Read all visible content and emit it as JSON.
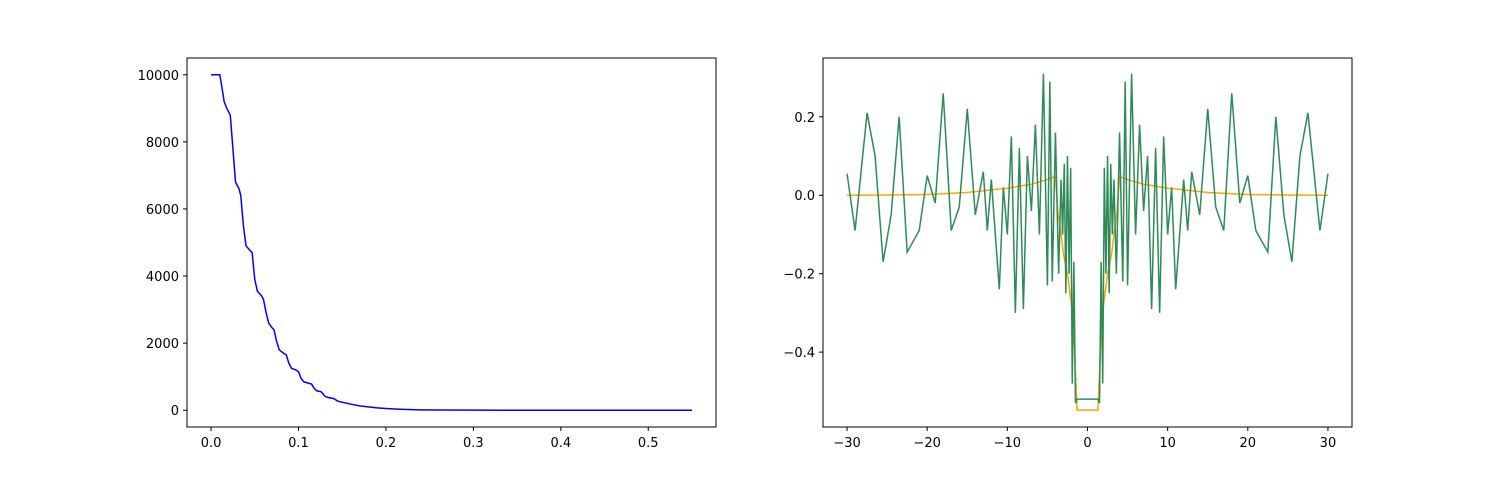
{
  "chart_data": [
    {
      "type": "line",
      "color": "#0000ff",
      "x": [
        0,
        0.01,
        0.012,
        0.015,
        0.018,
        0.022,
        0.025,
        0.028,
        0.032,
        0.034,
        0.037,
        0.04,
        0.045,
        0.047,
        0.05,
        0.053,
        0.058,
        0.06,
        0.063,
        0.066,
        0.07,
        0.072,
        0.075,
        0.078,
        0.083,
        0.086,
        0.089,
        0.092,
        0.097,
        0.1,
        0.103,
        0.106,
        0.112,
        0.115,
        0.118,
        0.121,
        0.126,
        0.13,
        0.134,
        0.14,
        0.145,
        0.15,
        0.16,
        0.17,
        0.18,
        0.19,
        0.2,
        0.21,
        0.22,
        0.24,
        0.26,
        0.3,
        0.35,
        0.4,
        0.45,
        0.5,
        0.55
      ],
      "values": [
        10000,
        10000,
        9700,
        9200,
        9000,
        8800,
        7800,
        6800,
        6600,
        6400,
        5500,
        4900,
        4750,
        4700,
        3900,
        3550,
        3400,
        3300,
        2900,
        2600,
        2450,
        2400,
        2050,
        1800,
        1700,
        1650,
        1400,
        1250,
        1200,
        1150,
        950,
        850,
        800,
        780,
        650,
        580,
        550,
        420,
        380,
        350,
        270,
        240,
        180,
        130,
        100,
        70,
        50,
        35,
        25,
        12,
        6,
        2,
        0,
        0,
        0,
        0,
        0
      ],
      "xlim": [
        -0.0275,
        0.5775
      ],
      "ylim": [
        -500,
        10500
      ],
      "xticks": [
        {
          "value": 0,
          "label": "0.0"
        },
        0.1,
        0.2,
        0.3,
        0.4,
        0.5
      ],
      "yticks": [
        0,
        2000,
        4000,
        6000,
        8000,
        10000
      ]
    },
    {
      "type": "line",
      "series": [
        {
          "color": "#ffa500",
          "x": [
            -30,
            -25,
            -20,
            -15,
            -10,
            -7,
            -5,
            -4,
            -3.7,
            -3.3,
            -3,
            -2.5,
            -2,
            -1.7,
            -1.4,
            -1.3,
            1.3,
            1.4,
            1.7,
            2,
            2.5,
            3,
            3.3,
            3.7,
            4,
            5,
            7,
            10,
            15,
            20,
            25,
            30
          ],
          "values": [
            0,
            0.0005,
            0.002,
            0.007,
            0.018,
            0.028,
            0.04,
            0.048,
            -0.04,
            -0.1,
            -0.15,
            -0.2,
            -0.28,
            -0.35,
            -0.5,
            -0.548,
            -0.548,
            -0.5,
            -0.35,
            -0.28,
            -0.2,
            -0.15,
            -0.1,
            -0.04,
            0.048,
            0.04,
            0.028,
            0.018,
            0.007,
            0.002,
            0.0005,
            0
          ]
        },
        {
          "color": "#2e8b57",
          "x": [
            -30,
            -29,
            -27.5,
            -26.5,
            -25.5,
            -24.5,
            -23.5,
            -22.5,
            -21,
            -20,
            -19,
            -18,
            -17,
            -16,
            -15,
            -14,
            -13,
            -12.5,
            -12,
            -11,
            -10.5,
            -10,
            -9.5,
            -9,
            -8.5,
            -8,
            -7.5,
            -7,
            -6.5,
            -6,
            -5.5,
            -5,
            -4.7,
            -4.4,
            -4,
            -3.6,
            -3.3,
            -3.1,
            -2.9,
            -2.7,
            -2.5,
            -2.3,
            -2.1,
            -1.9,
            -1.7,
            -1.5,
            -1.3,
            1.3,
            1.5,
            1.7,
            1.9,
            2.1,
            2.3,
            2.5,
            2.7,
            2.9,
            3.1,
            3.3,
            3.6,
            4,
            4.4,
            4.7,
            5,
            5.5,
            6,
            6.5,
            7,
            7.5,
            8,
            8.5,
            9,
            9.5,
            10,
            10.5,
            11,
            12,
            12.5,
            13,
            14,
            15,
            16,
            17,
            18,
            19,
            20,
            21,
            22.5,
            23.5,
            24.5,
            25.5,
            26.5,
            27.5,
            29,
            30
          ],
          "values": [
            0.055,
            -0.09,
            0.21,
            0.1,
            -0.17,
            -0.05,
            0.2,
            -0.145,
            -0.09,
            0.05,
            -0.02,
            0.26,
            -0.09,
            -0.03,
            0.22,
            -0.05,
            0.06,
            -0.09,
            0.04,
            -0.24,
            0.02,
            -0.1,
            0.15,
            -0.3,
            0.12,
            -0.29,
            0.1,
            -0.04,
            0.18,
            -0.1,
            0.31,
            -0.23,
            0.29,
            -0.22,
            0.16,
            -0.2,
            0.04,
            -0.1,
            0.08,
            -0.25,
            0.1,
            -0.2,
            0.07,
            -0.48,
            -0.17,
            -0.53,
            -0.52,
            -0.52,
            -0.53,
            -0.17,
            -0.48,
            0.07,
            -0.2,
            0.1,
            -0.25,
            0.08,
            -0.1,
            0.04,
            -0.2,
            0.16,
            -0.22,
            0.29,
            -0.23,
            0.31,
            -0.1,
            0.18,
            -0.04,
            0.1,
            -0.29,
            0.12,
            -0.3,
            0.15,
            -0.1,
            0.02,
            -0.24,
            0.04,
            -0.09,
            0.06,
            -0.05,
            0.22,
            -0.03,
            -0.09,
            0.26,
            -0.02,
            0.05,
            -0.09,
            -0.145,
            0.2,
            -0.05,
            -0.17,
            0.1,
            0.21,
            -0.09,
            0.055
          ]
        }
      ],
      "xlim": [
        -33,
        33
      ],
      "ylim": [
        -0.591,
        0.35
      ],
      "xticks": [
        {
          "value": -30,
          "label": "−30"
        },
        {
          "value": -20,
          "label": "−20"
        },
        {
          "value": -10,
          "label": "−10"
        },
        0,
        10,
        20,
        30
      ],
      "yticks": [
        {
          "value": -0.4,
          "label": "−0.4"
        },
        {
          "value": -0.2,
          "label": "−0.2"
        },
        {
          "value": 0,
          "label": "0.0"
        },
        0.2
      ]
    }
  ]
}
